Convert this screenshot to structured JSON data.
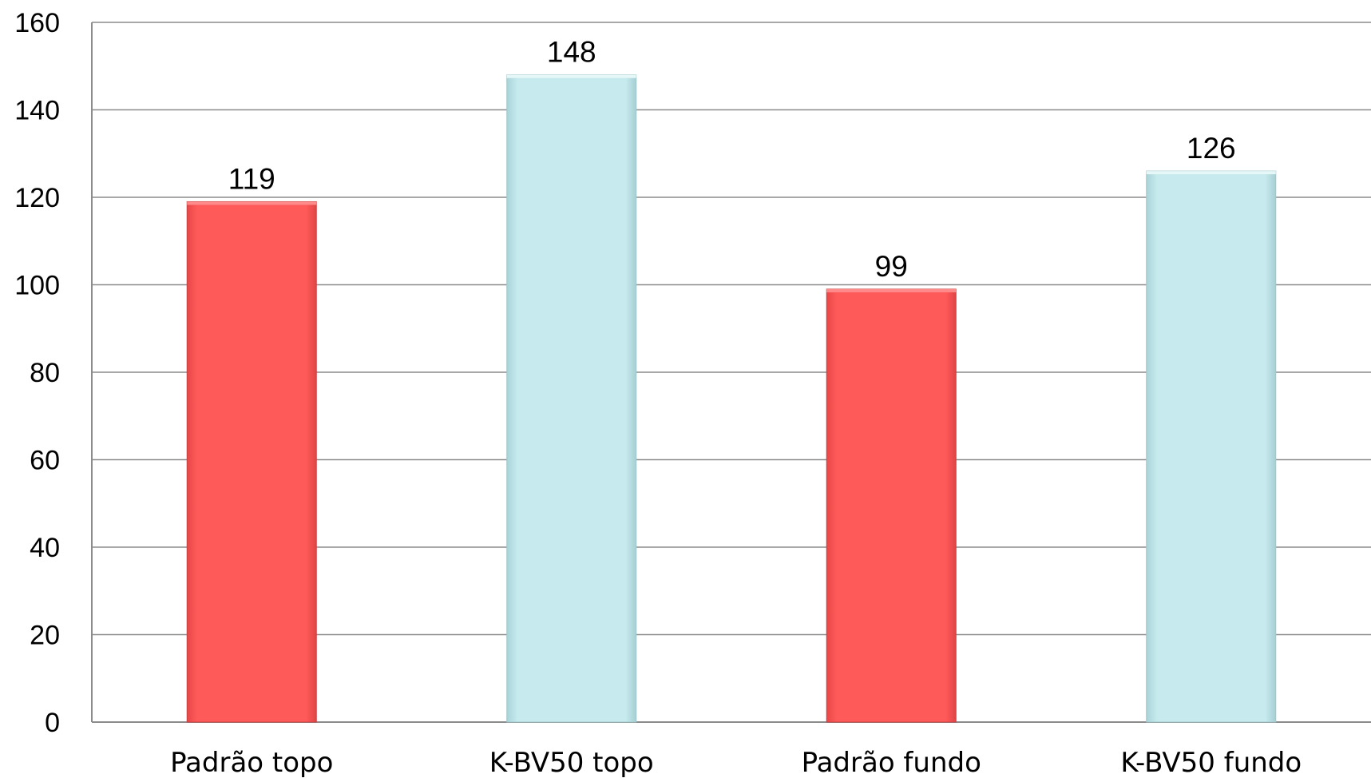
{
  "chart_data": {
    "type": "bar",
    "title": "",
    "xlabel": "",
    "ylabel": "",
    "categories": [
      "Padrão topo",
      "K-BV50 topo",
      "Padrão fundo",
      "K-BV50 fundo"
    ],
    "values": [
      119,
      148,
      99,
      126
    ],
    "data_labels": [
      "119",
      "148",
      "99",
      "126"
    ],
    "bar_colors": [
      "#ff5a5a",
      "#c6eaed",
      "#ff5a5a",
      "#c6eaed"
    ],
    "ylim": [
      0,
      160
    ],
    "y_ticks": [
      0,
      20,
      40,
      60,
      80,
      100,
      120,
      140,
      160
    ],
    "y_tick_labels": [
      "0",
      "20",
      "40",
      "60",
      "80",
      "100",
      "120",
      "140",
      "160"
    ],
    "grid": true,
    "legend": "none"
  }
}
